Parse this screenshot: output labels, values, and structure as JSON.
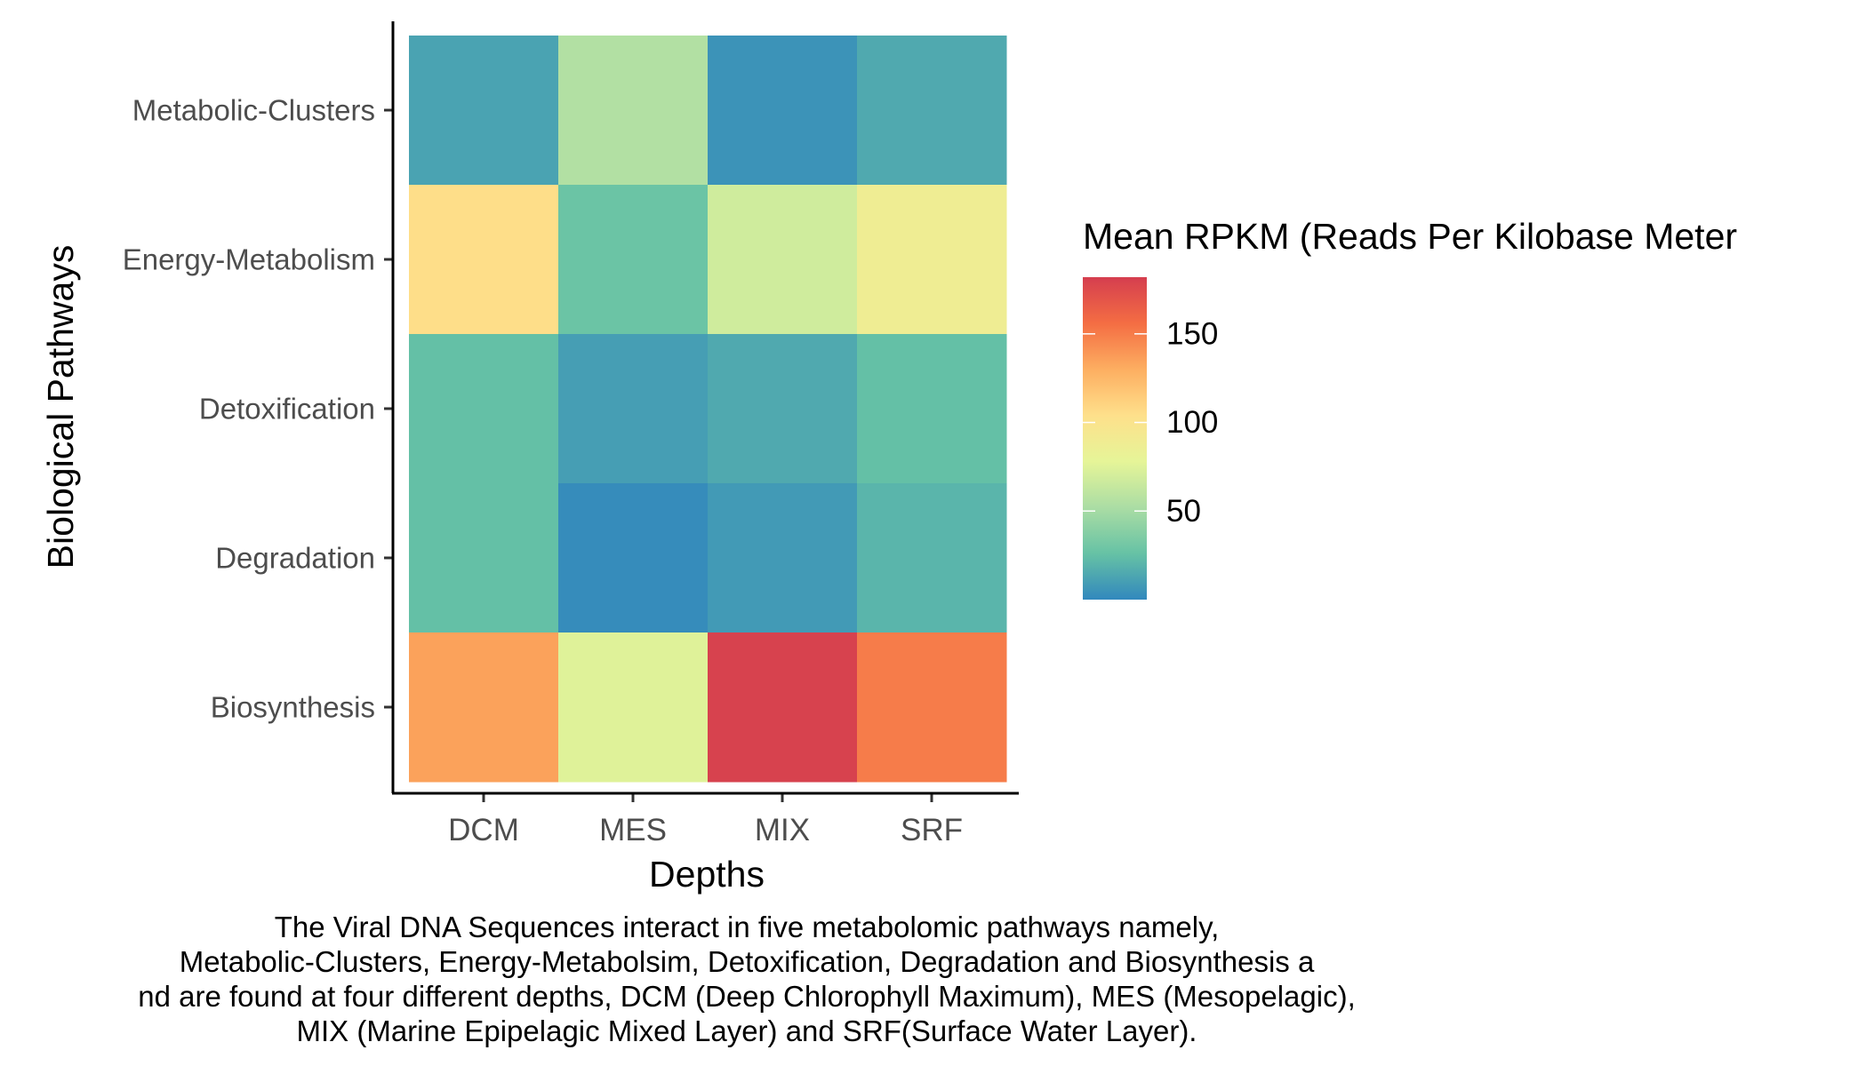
{
  "chart_data": {
    "type": "heatmap",
    "x_categories": [
      "DCM",
      "MES",
      "MIX",
      "SRF"
    ],
    "y_categories": [
      "Metabolic-Clusters",
      "Energy-Metabolism",
      "Detoxification",
      "Degradation",
      "Biosynthesis"
    ],
    "values": [
      [
        12,
        55,
        5,
        15
      ],
      [
        105,
        28,
        68,
        88
      ],
      [
        25,
        10,
        15,
        25
      ],
      [
        25,
        2,
        8,
        20
      ],
      [
        135,
        75,
        180,
        150
      ]
    ],
    "value_range": [
      0,
      182
    ],
    "xlabel": "Depths",
    "ylabel": "Biological Pathways",
    "legend": {
      "title": "Mean RPKM (Reads Per Kilobase Meter",
      "ticks": [
        50,
        100,
        150
      ],
      "colors": [
        "#3288bd",
        "#66c2a5",
        "#abdda4",
        "#e6f598",
        "#fee08b",
        "#fdae61",
        "#f46d43",
        "#d53e4f"
      ],
      "placement": "right"
    },
    "grid": false
  },
  "caption": [
    "The Viral DNA Sequences interact in five metabolomic pathways namely,",
    "Metabolic-Clusters, Energy-Metabolsim, Detoxification, Degradation and Biosynthesis a",
    "nd are found at four different depths, DCM (Deep Chlorophyll Maximum), MES (Mesopelagic),",
    "MIX (Marine Epipelagic Mixed Layer) and SRF(Surface Water Layer)."
  ]
}
